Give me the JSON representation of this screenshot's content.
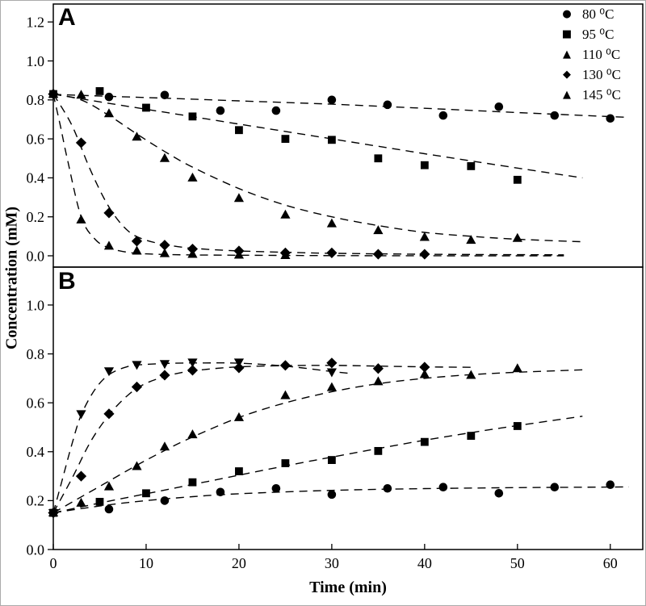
{
  "figure": {
    "xlabel": "Time (min)",
    "ylabel": "Concentration (mM)",
    "colors": {
      "foreground": "#000000",
      "background": "#ffffff",
      "frame_border": "#ababab"
    }
  },
  "legend": {
    "items": [
      {
        "symbol": "circle-icon",
        "glyph": "●",
        "label": "80 ⁰C"
      },
      {
        "symbol": "square-icon",
        "glyph": "■",
        "label": "95 ⁰C"
      },
      {
        "symbol": "triangle-up-icon",
        "glyph": "▲",
        "label": "110 ⁰C"
      },
      {
        "symbol": "diamond-icon",
        "glyph": "◆",
        "label": "130 ⁰C"
      },
      {
        "symbol": "triangle-up-icon",
        "glyph": "▲",
        "label": "145 ⁰C"
      }
    ]
  },
  "chart_data": [
    {
      "panel": "A",
      "type": "scatter",
      "title": "",
      "xlabel": "Time (min)",
      "ylabel": "Concentration (mM)",
      "xlim": [
        0,
        63.5
      ],
      "ylim": [
        -0.058,
        1.292
      ],
      "xticks": [
        0,
        10,
        20,
        30,
        40,
        50,
        60
      ],
      "yticks": [
        0.0,
        0.2,
        0.4,
        0.6,
        0.8,
        1.0,
        1.2
      ],
      "grid": false,
      "legend_position": "top-right",
      "line_style": "dashed",
      "series": [
        {
          "name": "80 ⁰C",
          "marker": "circle",
          "t": [
            0,
            6,
            12,
            18,
            24,
            30,
            36,
            42,
            48,
            54,
            60
          ],
          "v": [
            0.83,
            0.815,
            0.825,
            0.745,
            0.745,
            0.8,
            0.775,
            0.72,
            0.765,
            0.72,
            0.705
          ],
          "line_t": [
            0,
            10,
            20,
            30,
            40,
            50,
            62
          ],
          "line_v": [
            0.828,
            0.812,
            0.795,
            0.778,
            0.757,
            0.735,
            0.71
          ]
        },
        {
          "name": "95 ⁰C",
          "marker": "square",
          "t": [
            0,
            5,
            10,
            15,
            20,
            25,
            30,
            35,
            40,
            45,
            50
          ],
          "v": [
            0.83,
            0.845,
            0.76,
            0.715,
            0.645,
            0.6,
            0.595,
            0.5,
            0.465,
            0.46,
            0.39
          ],
          "line_t": [
            0,
            5,
            10,
            15,
            20,
            25,
            30,
            35,
            40,
            45,
            50,
            57
          ],
          "line_v": [
            0.83,
            0.79,
            0.752,
            0.714,
            0.676,
            0.638,
            0.6,
            0.562,
            0.524,
            0.487,
            0.45,
            0.4
          ]
        },
        {
          "name": "110 ⁰C",
          "marker": "triangle-up",
          "t": [
            0,
            3,
            6,
            9,
            12,
            15,
            20,
            25,
            30,
            35,
            40,
            45,
            50
          ],
          "v": [
            0.83,
            0.825,
            0.73,
            0.61,
            0.5,
            0.4,
            0.295,
            0.21,
            0.165,
            0.13,
            0.095,
            0.08,
            0.09
          ],
          "line_t": [
            0,
            3,
            6,
            9,
            12,
            15,
            20,
            25,
            30,
            35,
            40,
            45,
            50,
            57
          ],
          "line_v": [
            0.83,
            0.8,
            0.72,
            0.625,
            0.535,
            0.455,
            0.345,
            0.26,
            0.2,
            0.155,
            0.12,
            0.1,
            0.085,
            0.072
          ]
        },
        {
          "name": "130 ⁰C",
          "marker": "diamond",
          "t": [
            0,
            3,
            6,
            9,
            12,
            15,
            20,
            25,
            30,
            35,
            40
          ],
          "v": [
            0.83,
            0.58,
            0.22,
            0.075,
            0.055,
            0.035,
            0.025,
            0.015,
            0.015,
            0.008,
            0.008
          ],
          "line_t": [
            0,
            2,
            4,
            6,
            8,
            10,
            13,
            16,
            20,
            25,
            30,
            40,
            55
          ],
          "line_v": [
            0.83,
            0.67,
            0.44,
            0.25,
            0.13,
            0.08,
            0.05,
            0.035,
            0.025,
            0.018,
            0.013,
            0.008,
            0.005
          ]
        },
        {
          "name": "145 ⁰C",
          "marker": "triangle-up",
          "t": [
            0,
            3,
            6,
            9,
            12,
            15,
            20,
            25
          ],
          "v": [
            0.83,
            0.185,
            0.05,
            0.025,
            0.012,
            0.008,
            0.004,
            0.002
          ],
          "line_t": [
            0,
            0.75,
            1.5,
            3,
            4.5,
            6,
            8,
            10,
            14,
            20,
            30,
            45,
            55
          ],
          "line_v": [
            0.83,
            0.67,
            0.5,
            0.2,
            0.085,
            0.04,
            0.018,
            0.01,
            0.005,
            0.003,
            0.001,
            0.0,
            0.0
          ]
        }
      ]
    },
    {
      "panel": "B",
      "type": "scatter",
      "title": "",
      "xlabel": "Time (min)",
      "ylabel": "Concentration (mM)",
      "xlim": [
        0,
        63.5
      ],
      "ylim": [
        0,
        1.155
      ],
      "xticks": [
        0,
        10,
        20,
        30,
        40,
        50,
        60
      ],
      "yticks": [
        0.0,
        0.2,
        0.4,
        0.6,
        0.8,
        1.0
      ],
      "grid": false,
      "line_style": "dashed",
      "series": [
        {
          "name": "80 ⁰C",
          "marker": "circle",
          "t": [
            0,
            6,
            12,
            18,
            24,
            30,
            36,
            42,
            48,
            54,
            60
          ],
          "v": [
            0.15,
            0.165,
            0.2,
            0.235,
            0.25,
            0.225,
            0.25,
            0.255,
            0.23,
            0.255,
            0.265
          ],
          "line_t": [
            0,
            5,
            10,
            15,
            20,
            30,
            40,
            50,
            62
          ],
          "line_v": [
            0.15,
            0.178,
            0.2,
            0.216,
            0.228,
            0.242,
            0.249,
            0.253,
            0.256
          ]
        },
        {
          "name": "95 ⁰C",
          "marker": "square",
          "t": [
            0,
            5,
            10,
            15,
            20,
            25,
            30,
            35,
            40,
            45,
            50
          ],
          "v": [
            0.15,
            0.195,
            0.23,
            0.275,
            0.32,
            0.353,
            0.366,
            0.403,
            0.44,
            0.465,
            0.505
          ],
          "line_t": [
            0,
            5,
            10,
            15,
            20,
            25,
            30,
            35,
            40,
            45,
            50,
            57
          ],
          "line_v": [
            0.15,
            0.19,
            0.228,
            0.266,
            0.304,
            0.342,
            0.378,
            0.413,
            0.447,
            0.478,
            0.507,
            0.545
          ]
        },
        {
          "name": "110 ⁰C",
          "marker": "triangle-up",
          "t": [
            0,
            3,
            6,
            9,
            12,
            15,
            20,
            25,
            30,
            35,
            40,
            45,
            50
          ],
          "v": [
            0.15,
            0.19,
            0.257,
            0.34,
            0.42,
            0.47,
            0.54,
            0.63,
            0.663,
            0.687,
            0.716,
            0.713,
            0.74
          ],
          "line_t": [
            0,
            3,
            6,
            9,
            12,
            15,
            20,
            25,
            30,
            35,
            40,
            45,
            50,
            57
          ],
          "line_v": [
            0.15,
            0.215,
            0.28,
            0.345,
            0.405,
            0.46,
            0.54,
            0.6,
            0.645,
            0.678,
            0.7,
            0.715,
            0.725,
            0.735
          ]
        },
        {
          "name": "130 ⁰C",
          "marker": "diamond",
          "t": [
            0,
            3,
            6,
            9,
            12,
            15,
            20,
            25,
            30,
            35,
            40
          ],
          "v": [
            0.15,
            0.3,
            0.555,
            0.665,
            0.713,
            0.733,
            0.743,
            0.753,
            0.763,
            0.74,
            0.746
          ],
          "line_t": [
            0,
            2,
            4,
            6,
            8,
            10,
            13,
            16,
            20,
            25,
            30,
            35,
            40,
            45
          ],
          "line_v": [
            0.15,
            0.29,
            0.44,
            0.55,
            0.63,
            0.68,
            0.717,
            0.735,
            0.747,
            0.752,
            0.753,
            0.75,
            0.747,
            0.745
          ]
        },
        {
          "name": "145 ⁰C",
          "marker": "triangle-down",
          "t": [
            0,
            3,
            6,
            9,
            12,
            15,
            20,
            30
          ],
          "v": [
            0.15,
            0.555,
            0.73,
            0.756,
            0.76,
            0.766,
            0.766,
            0.726
          ],
          "line_t": [
            0,
            1,
            2,
            3,
            4.5,
            6,
            8,
            10,
            13,
            16,
            20,
            25,
            30,
            32
          ],
          "line_v": [
            0.15,
            0.29,
            0.43,
            0.55,
            0.655,
            0.715,
            0.748,
            0.757,
            0.762,
            0.763,
            0.762,
            0.75,
            0.728,
            0.72
          ]
        }
      ]
    }
  ]
}
